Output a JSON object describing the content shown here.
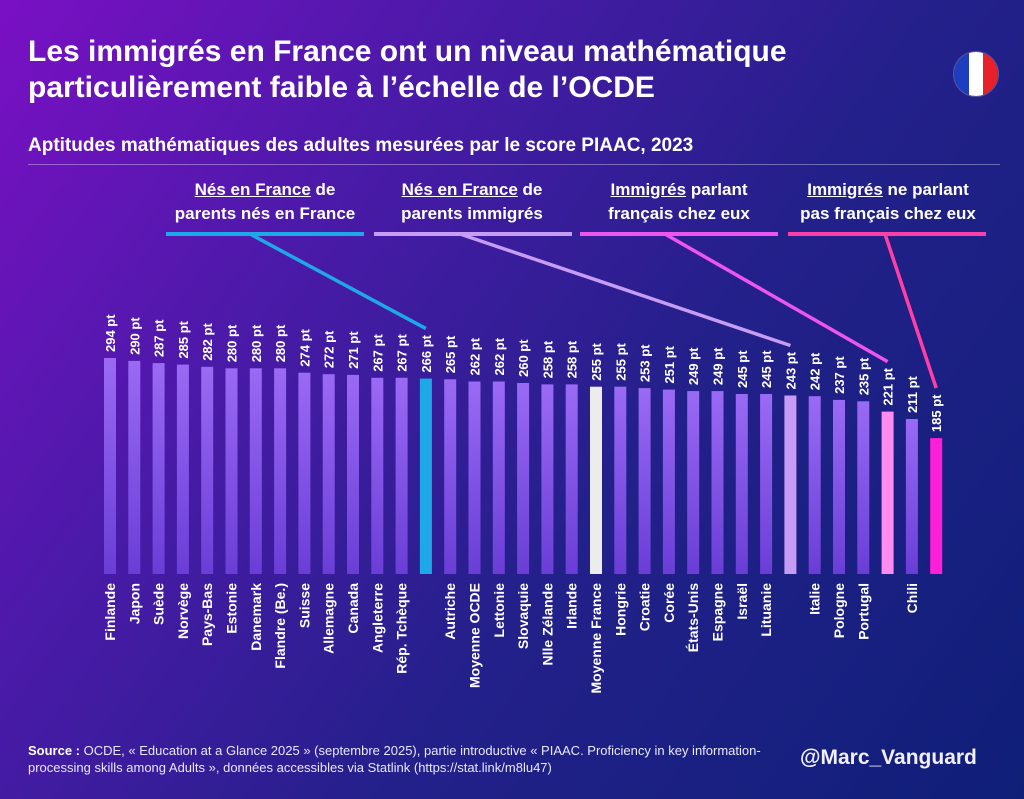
{
  "title_line1": "Les immigrés en France ont un niveau mathématique",
  "title_line2": "particulièrement faible à l’échelle de l’OCDE",
  "subtitle": "Aptitudes mathématiques des adultes mesurées par le score PIAAC, 2023",
  "flag_colors": [
    "#1d3fbf",
    "#ffffff",
    "#e8202a"
  ],
  "groups": [
    {
      "underlined": "Nés en France",
      "rest1": " de",
      "line2": "parents nés en France",
      "color": "#1fa8e8"
    },
    {
      "underlined": "Nés en France",
      "rest1": " de",
      "line2": "parents immigrés",
      "color": "#c79cf5"
    },
    {
      "underlined": "Immigrés",
      "rest1": " parlant",
      "line2": "français chez eux",
      "color": "#ee55ee"
    },
    {
      "underlined": "Immigrés",
      "rest1": " ne parlant",
      "line2": "pas français chez eux",
      "color": "#ff3fa8"
    }
  ],
  "source_label": "Source :",
  "source_text": " OCDE, « Education at a Glance 2025 » (septembre 2025), partie introductive « PIAAC. Proficiency in key information-processing skills among Adults », données accessibles via Statlink (https://stat.link/m8lu47)",
  "handle": "@Marc_Vanguard",
  "chart_data": {
    "type": "bar",
    "title": "Aptitudes mathématiques des adultes mesurées par le score PIAAC, 2023",
    "unit_suffix": " pt",
    "categories": [
      "Finlande",
      "Japon",
      "Suède",
      "Norvège",
      "Pays-Bas",
      "Estonie",
      "Danemark",
      "Flandre (Be.)",
      "Suisse",
      "Allemagne",
      "Canada",
      "Angleterre",
      "Rép. Tchèque",
      "France – nés en France de parents nés en France",
      "Autriche",
      "Moyenne OCDE",
      "Lettonie",
      "Slovaquie",
      "Nlle Zélande",
      "Irlande",
      "Moyenne France",
      "Hongrie",
      "Croatie",
      "Corée",
      "États-Unis",
      "Espagne",
      "Israël",
      "Lituanie",
      "France – nés en France de parents immigrés",
      "Italie",
      "Pologne",
      "Portugal",
      "France – immigrés parlant français chez eux",
      "Chili",
      "France – immigrés ne parlant pas français chez eux"
    ],
    "display_labels": [
      "Finlande",
      "Japon",
      "Suède",
      "Norvège",
      "Pays-Bas",
      "Estonie",
      "Danemark",
      "Flandre (Be.)",
      "Suisse",
      "Allemagne",
      "Canada",
      "Angleterre",
      "Rép. Tchèque",
      "",
      "Autriche",
      "Moyenne OCDE",
      "Lettonie",
      "Slovaquie",
      "Nlle Zélande",
      "Irlande",
      "Moyenne France",
      "Hongrie",
      "Croatie",
      "Corée",
      "États-Unis",
      "Espagne",
      "Israël",
      "Lituanie",
      "",
      "Italie",
      "Pologne",
      "Portugal",
      "",
      "Chili",
      ""
    ],
    "values": [
      294,
      290,
      287,
      285,
      282,
      280,
      280,
      280,
      274,
      272,
      271,
      267,
      267,
      266,
      265,
      262,
      262,
      260,
      258,
      258,
      255,
      255,
      253,
      251,
      249,
      249,
      245,
      245,
      243,
      242,
      237,
      235,
      221,
      211,
      185
    ],
    "highlight_group": [
      null,
      null,
      null,
      null,
      null,
      null,
      null,
      null,
      null,
      null,
      null,
      null,
      null,
      0,
      null,
      null,
      null,
      null,
      null,
      null,
      "france",
      null,
      null,
      null,
      null,
      null,
      null,
      null,
      1,
      null,
      null,
      null,
      2,
      null,
      3
    ],
    "colors": {
      "normal_top": "#9a6af4",
      "normal_bottom": "#6a3ed6",
      "g0": "#1fa8e8",
      "g1": "#c79cf5",
      "g2": "#ff8af0",
      "g3": "#ff1fd6",
      "france": "#ececec"
    }
  }
}
